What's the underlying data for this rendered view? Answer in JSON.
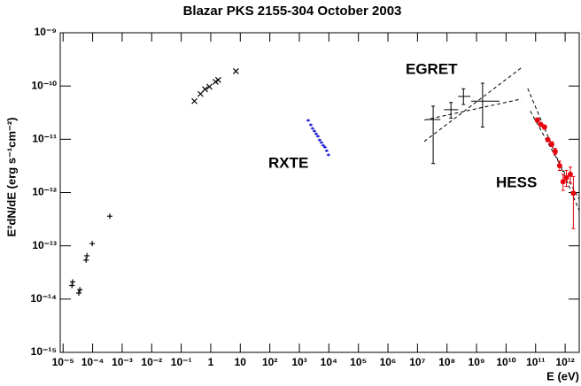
{
  "chart_data": {
    "type": "scatter",
    "title": "Blazar PKS 2155-304 October 2003",
    "x_label": "E (eV)",
    "y_label": "E²dN/dE (erg s⁻¹cm⁻²)",
    "xscale": "log",
    "yscale": "log",
    "xlim": [
      8e-06,
      3000000000000.0
    ],
    "ylim": [
      1e-15,
      1e-09
    ],
    "xticks": [
      {
        "value": 1e-05,
        "label": "10⁻⁵"
      },
      {
        "value": 0.0001,
        "label": "10⁻⁴"
      },
      {
        "value": 0.001,
        "label": "10⁻³"
      },
      {
        "value": 0.01,
        "label": "10⁻²"
      },
      {
        "value": 0.1,
        "label": "10⁻¹"
      },
      1,
      10,
      {
        "value": 100.0,
        "label": "10²"
      },
      {
        "value": 1000.0,
        "label": "10³"
      },
      {
        "value": 10000.0,
        "label": "10⁴"
      },
      {
        "value": 100000.0,
        "label": "10⁵"
      },
      {
        "value": 1000000.0,
        "label": "10⁶"
      },
      {
        "value": 10000000.0,
        "label": "10⁷"
      },
      {
        "value": 100000000.0,
        "label": "10⁸"
      },
      {
        "value": 1000000000.0,
        "label": "10⁹"
      },
      {
        "value": 10000000000.0,
        "label": "10¹⁰"
      },
      {
        "value": 100000000000.0,
        "label": "10¹¹"
      },
      {
        "value": 1000000000000.0,
        "label": "10¹²"
      }
    ],
    "yticks": [
      {
        "value": 1e-15,
        "label": "10⁻¹⁵"
      },
      {
        "value": 1e-14,
        "label": "10⁻¹⁴"
      },
      {
        "value": 1e-13,
        "label": "10⁻¹³"
      },
      {
        "value": 1e-12,
        "label": "10⁻¹²"
      },
      {
        "value": 1e-11,
        "label": "10⁻¹¹"
      },
      {
        "value": 1e-10,
        "label": "10⁻¹⁰"
      },
      {
        "value": 1e-09,
        "label": "10⁻⁹"
      }
    ],
    "series": [
      {
        "marker": "plus",
        "color": "#000000",
        "x": [
          2e-05,
          2.1e-05,
          3.4e-05,
          3.7e-05,
          6e-05,
          6.4e-05,
          9.7e-05,
          0.00038
        ],
        "values": [
          1.8e-14,
          2.1e-14,
          1.3e-14,
          1.5e-14,
          5.4e-14,
          6.5e-14,
          1.1e-13,
          3.6e-13
        ]
      },
      {
        "marker": "cross",
        "color": "#000000",
        "x": [
          0.28,
          0.45,
          0.64,
          0.9,
          1.46,
          1.79,
          7.1
        ],
        "values": [
          5.2e-11,
          7.1e-11,
          8.7e-11,
          9.7e-11,
          1.2e-10,
          1.3e-10,
          1.9e-10
        ]
      },
      {
        "name": "RXTE",
        "marker": "dash",
        "color": "#0000cc",
        "x": [
          2000,
          2440,
          2800,
          3220,
          3690,
          4240,
          4860,
          5570,
          6400,
          7350,
          8420,
          9660
        ],
        "values": [
          2.26e-11,
          1.87e-11,
          1.6e-11,
          1.43e-11,
          1.27e-11,
          1.14e-11,
          9.7e-12,
          8.7e-12,
          7.7e-12,
          7.1e-12,
          6.1e-12,
          5.1e-12
        ]
      },
      {
        "name": "EGRET",
        "marker": "errorcross",
        "color": "#000000",
        "x": [
          34000000.0,
          136000000.0,
          360000000.0,
          1600000000.0
        ],
        "x_low": [
          20000000.0,
          79000000.0,
          240000000.0,
          660000000.0
        ],
        "x_high": [
          60000000.0,
          240000000.0,
          620000000.0,
          6000000000.0
        ],
        "values": [
          2.35e-11,
          3.6e-11,
          6.4e-11,
          5.2e-11
        ],
        "low": [
          3.5e-12,
          2.5e-11,
          4.5e-11,
          1.7e-11
        ],
        "high": [
          4.2e-11,
          4.9e-11,
          8.9e-11,
          1.13e-10
        ]
      },
      {
        "name": "HESS",
        "marker": "circle",
        "color": "#e8000b",
        "x": [
          115000000000.0,
          150000000000.0,
          200000000000.0,
          260000000000.0,
          350000000000.0,
          460000000000.0,
          650000000000.0,
          850000000000.0,
          1100000000000.0,
          1500000000000.0,
          1900000000000.0
        ],
        "values": [
          2.3e-11,
          1.9e-11,
          1.7e-11,
          9.8e-12,
          8.1e-12,
          5.9e-12,
          3.2e-12,
          1.6e-12,
          1.9e-12,
          2.2e-12,
          9.7e-13
        ],
        "low": [
          2.1e-11,
          1.75e-11,
          1.55e-11,
          9e-12,
          7.3e-12,
          5.2e-12,
          2.6e-12,
          1.1e-12,
          1.3e-12,
          1.5e-12,
          2.1e-13
        ],
        "high": [
          2.5e-11,
          2.05e-11,
          1.85e-11,
          1.07e-11,
          9e-12,
          6.7e-12,
          3.9e-12,
          2.2e-12,
          2.6e-12,
          3e-12,
          2e-12
        ]
      }
    ],
    "fits": [
      {
        "color": "#000000",
        "x": [
          17000000.0,
          33000000000.0
        ],
        "values": [
          9.1e-12,
          2.2e-10
        ]
      },
      {
        "color": "#000000",
        "x": [
          17000000.0,
          33000000000.0
        ],
        "values": [
          2.3e-11,
          5.7e-11
        ]
      },
      {
        "color": "#000000",
        "x": [
          54000000000.0,
          3000000000000.0
        ],
        "values": [
          9e-11,
          4.6e-13
        ]
      },
      {
        "color": "#000000",
        "x": [
          66000000000.0,
          3000000000000.0
        ],
        "values": [
          3.4e-11,
          7.5e-13
        ]
      }
    ]
  }
}
